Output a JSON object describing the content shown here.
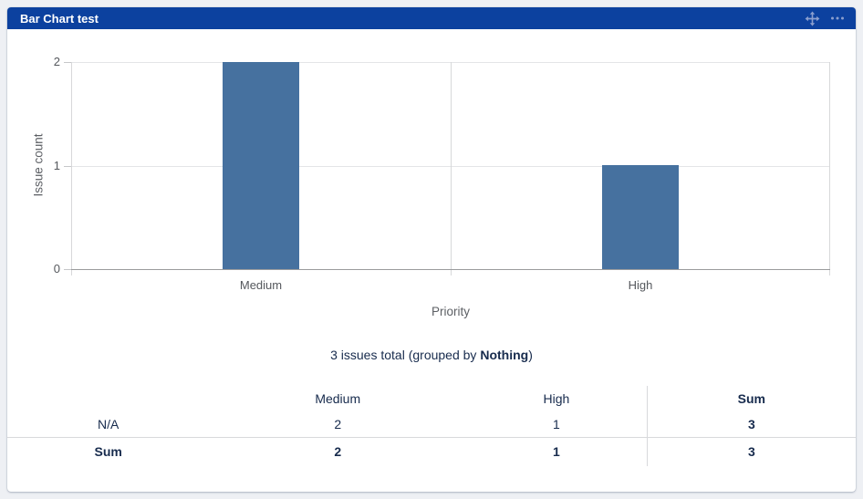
{
  "widget": {
    "title": "Bar Chart test",
    "icons": [
      "move-icon",
      "more-options-icon"
    ]
  },
  "colors": {
    "header_bg": "#0c419f",
    "header_icon": "#8b9fce",
    "bar": "#46719f",
    "navy_text": "#172b4d",
    "page_bg": "#eef0f4"
  },
  "chart_data": {
    "type": "bar",
    "categories": [
      "Medium",
      "High"
    ],
    "values": [
      2,
      1
    ],
    "title": "",
    "xlabel": "Priority",
    "ylabel": "Issue count",
    "ylim": [
      0,
      2
    ],
    "yticks": [
      0,
      1,
      2
    ],
    "grid": true,
    "legend": false,
    "bar_color": "#46719f"
  },
  "summary": {
    "prefix": "3 issues total (grouped by ",
    "group_by": "Nothing",
    "suffix": ")"
  },
  "table": {
    "headers": [
      "",
      "Medium",
      "High",
      "Sum"
    ],
    "rows": [
      {
        "label": "N/A",
        "values": [
          2,
          1,
          3
        ]
      },
      {
        "label": "Sum",
        "values": [
          2,
          1,
          3
        ]
      }
    ]
  }
}
